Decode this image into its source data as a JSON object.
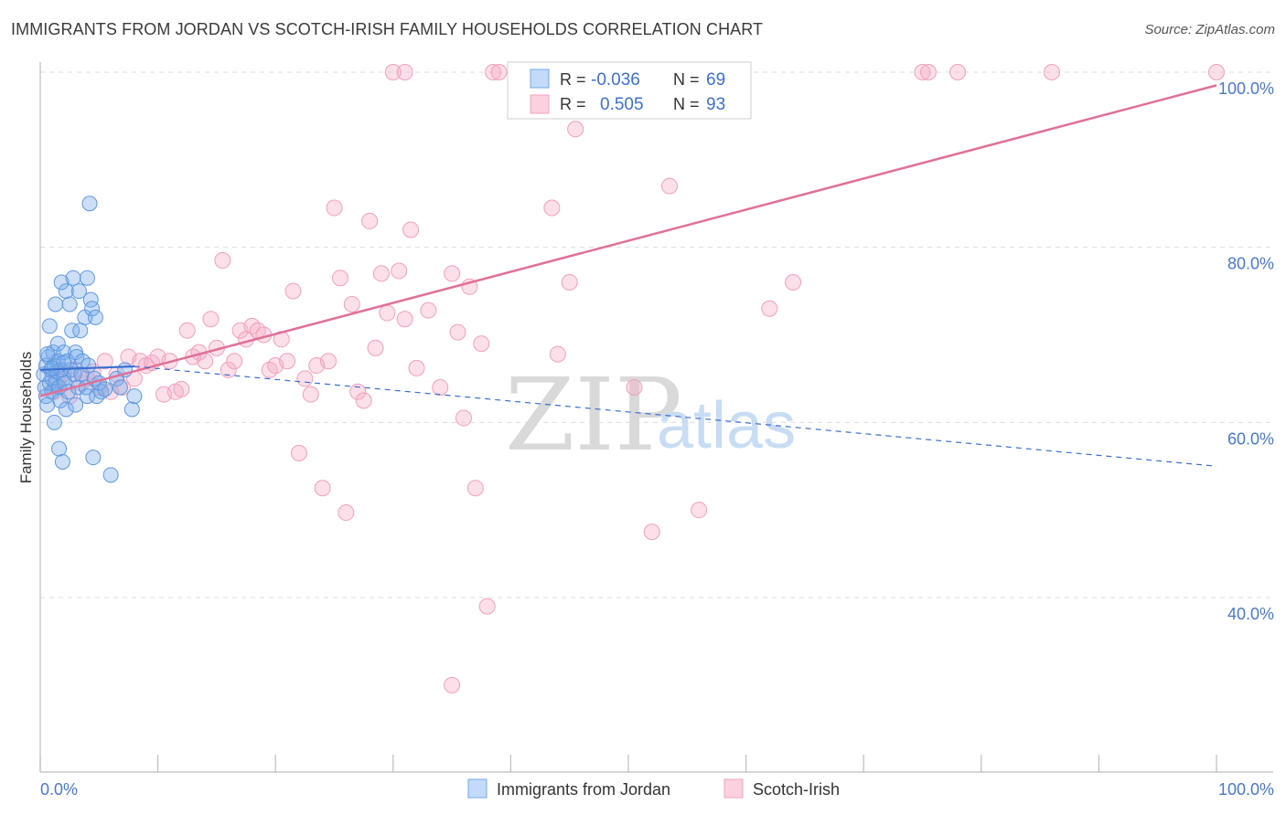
{
  "title": "IMMIGRANTS FROM JORDAN VS SCOTCH-IRISH FAMILY HOUSEHOLDS CORRELATION CHART",
  "source": "Source: ZipAtlas.com",
  "watermark": {
    "zip": "ZIP",
    "atlas": "atlas"
  },
  "colors": {
    "blue": "#6fa8e8",
    "pink": "#f1a2bf",
    "blue_line": "#3b6fcf",
    "pink_line": "#e07098",
    "grid": "#dddddd"
  },
  "legend_top": {
    "rows": [
      {
        "r_label": "R =",
        "r_value": "-0.036",
        "n_label": "N =",
        "n_value": "69"
      },
      {
        "r_label": "R =",
        "r_value": "0.505",
        "n_label": "N =",
        "n_value": "93"
      }
    ]
  },
  "legend_bottom": [
    "Immigrants from Jordan",
    "Scotch-Irish"
  ],
  "chart_data": {
    "type": "scatter",
    "title": "IMMIGRANTS FROM JORDAN VS SCOTCH-IRISH FAMILY HOUSEHOLDS CORRELATION CHART",
    "xlabel": "",
    "ylabel": "Family Households",
    "x_tick_labels": [
      "0.0%",
      "100.0%"
    ],
    "y_tick_labels": [
      "40.0%",
      "60.0%",
      "80.0%",
      "100.0%"
    ],
    "xlim": [
      0,
      100
    ],
    "ylim": [
      20,
      101
    ],
    "grid": true,
    "series": [
      {
        "name": "Immigrants from Jordan",
        "r": -0.036,
        "n": 69,
        "trend": {
          "x": [
            0,
            8,
            100
          ],
          "y": [
            66.0,
            66.4,
            55.0
          ]
        },
        "points": [
          [
            0.3,
            65.5
          ],
          [
            0.4,
            64.0
          ],
          [
            0.5,
            66.5
          ],
          [
            0.5,
            63.0
          ],
          [
            0.6,
            62.0
          ],
          [
            0.7,
            67.5
          ],
          [
            0.8,
            64.5
          ],
          [
            0.8,
            71.0
          ],
          [
            0.9,
            66.0
          ],
          [
            1.0,
            65.0
          ],
          [
            1.0,
            63.5
          ],
          [
            1.1,
            68.0
          ],
          [
            1.2,
            66.5
          ],
          [
            1.2,
            60.0
          ],
          [
            1.3,
            64.5
          ],
          [
            1.3,
            73.5
          ],
          [
            1.4,
            65.8
          ],
          [
            1.5,
            67.0
          ],
          [
            1.5,
            69.0
          ],
          [
            1.6,
            57.0
          ],
          [
            1.6,
            64.0
          ],
          [
            1.7,
            62.5
          ],
          [
            1.8,
            76.0
          ],
          [
            1.8,
            66.0
          ],
          [
            1.9,
            55.5
          ],
          [
            2.0,
            68.0
          ],
          [
            2.0,
            65.0
          ],
          [
            2.1,
            64.5
          ],
          [
            2.2,
            75.0
          ],
          [
            2.2,
            61.5
          ],
          [
            2.3,
            67.0
          ],
          [
            2.4,
            63.5
          ],
          [
            2.5,
            73.5
          ],
          [
            2.6,
            66.0
          ],
          [
            2.7,
            70.5
          ],
          [
            2.8,
            76.5
          ],
          [
            2.9,
            65.5
          ],
          [
            3.0,
            68.0
          ],
          [
            3.0,
            62.0
          ],
          [
            3.1,
            67.5
          ],
          [
            3.2,
            64.0
          ],
          [
            3.3,
            75.0
          ],
          [
            3.4,
            70.5
          ],
          [
            3.5,
            65.5
          ],
          [
            3.6,
            67.0
          ],
          [
            3.8,
            72.0
          ],
          [
            3.9,
            64.0
          ],
          [
            4.0,
            63.0
          ],
          [
            4.0,
            76.5
          ],
          [
            4.1,
            66.5
          ],
          [
            4.2,
            85.0
          ],
          [
            4.3,
            74.0
          ],
          [
            4.4,
            73.0
          ],
          [
            4.5,
            56.0
          ],
          [
            4.6,
            65.0
          ],
          [
            4.7,
            72.0
          ],
          [
            4.8,
            63.0
          ],
          [
            5.0,
            64.5
          ],
          [
            5.2,
            63.5
          ],
          [
            5.5,
            63.8
          ],
          [
            6.0,
            54.0
          ],
          [
            6.5,
            65.0
          ],
          [
            6.8,
            64.0
          ],
          [
            7.2,
            66.0
          ],
          [
            7.8,
            61.5
          ],
          [
            8.0,
            63.0
          ],
          [
            2.0,
            66.8
          ],
          [
            1.0,
            66.2
          ],
          [
            0.6,
            67.8
          ]
        ]
      },
      {
        "name": "Scotch-Irish",
        "r": 0.505,
        "n": 93,
        "trend": {
          "x": [
            0,
            100
          ],
          "y": [
            63.0,
            98.5
          ]
        },
        "points": [
          [
            1.2,
            63.5
          ],
          [
            1.5,
            64.8
          ],
          [
            2.0,
            65.5
          ],
          [
            2.5,
            63.0
          ],
          [
            3.0,
            66.0
          ],
          [
            3.5,
            64.5
          ],
          [
            4.0,
            65.0
          ],
          [
            4.5,
            65.8
          ],
          [
            5.0,
            64.0
          ],
          [
            5.5,
            67.0
          ],
          [
            6.0,
            63.5
          ],
          [
            6.5,
            65.5
          ],
          [
            7.0,
            64.0
          ],
          [
            7.5,
            67.5
          ],
          [
            8.0,
            65.0
          ],
          [
            8.5,
            67.0
          ],
          [
            9.0,
            66.5
          ],
          [
            9.5,
            66.8
          ],
          [
            10.0,
            67.5
          ],
          [
            10.5,
            63.2
          ],
          [
            11.0,
            67.0
          ],
          [
            11.5,
            63.5
          ],
          [
            12.0,
            63.8
          ],
          [
            12.5,
            70.5
          ],
          [
            13.0,
            67.5
          ],
          [
            13.5,
            68.0
          ],
          [
            14.0,
            67.0
          ],
          [
            14.5,
            71.8
          ],
          [
            15.0,
            68.5
          ],
          [
            15.5,
            78.5
          ],
          [
            16.0,
            66.0
          ],
          [
            16.5,
            67.0
          ],
          [
            17.0,
            70.5
          ],
          [
            17.5,
            69.5
          ],
          [
            18.0,
            71.0
          ],
          [
            18.5,
            70.5
          ],
          [
            19.0,
            70.0
          ],
          [
            19.5,
            66.0
          ],
          [
            20.0,
            66.5
          ],
          [
            20.5,
            69.5
          ],
          [
            21.0,
            67.0
          ],
          [
            21.5,
            75.0
          ],
          [
            22.0,
            56.5
          ],
          [
            22.5,
            65.0
          ],
          [
            23.0,
            63.2
          ],
          [
            23.5,
            66.5
          ],
          [
            24.0,
            52.5
          ],
          [
            24.5,
            67.0
          ],
          [
            25.0,
            84.5
          ],
          [
            25.5,
            76.5
          ],
          [
            26.0,
            49.7
          ],
          [
            26.5,
            73.5
          ],
          [
            27.0,
            63.5
          ],
          [
            27.5,
            62.5
          ],
          [
            28.0,
            83.0
          ],
          [
            28.5,
            68.5
          ],
          [
            29.0,
            77.0
          ],
          [
            29.5,
            72.5
          ],
          [
            30.0,
            100.0
          ],
          [
            30.5,
            77.3
          ],
          [
            31.0,
            71.8
          ],
          [
            31.5,
            82.0
          ],
          [
            32.0,
            66.2
          ],
          [
            31.0,
            100.0
          ],
          [
            33.0,
            72.8
          ],
          [
            34.0,
            64.0
          ],
          [
            35.0,
            77.0
          ],
          [
            35.5,
            70.3
          ],
          [
            36.0,
            60.5
          ],
          [
            36.5,
            75.5
          ],
          [
            37.0,
            52.5
          ],
          [
            37.5,
            69.0
          ],
          [
            38.0,
            39.0
          ],
          [
            38.5,
            100.0
          ],
          [
            39.0,
            100.0
          ],
          [
            35.0,
            30.0
          ],
          [
            43.5,
            84.5
          ],
          [
            44.0,
            67.8
          ],
          [
            45.0,
            76.0
          ],
          [
            45.5,
            93.5
          ],
          [
            47.5,
            100.0
          ],
          [
            50.5,
            64.0
          ],
          [
            52.0,
            47.5
          ],
          [
            53.5,
            87.0
          ],
          [
            54.5,
            100.0
          ],
          [
            56.0,
            50.0
          ],
          [
            62.0,
            73.0
          ],
          [
            64.0,
            76.0
          ],
          [
            75.0,
            100.0
          ],
          [
            75.5,
            100.0
          ],
          [
            78.0,
            100.0
          ],
          [
            86.0,
            100.0
          ],
          [
            100.0,
            100.0
          ]
        ]
      }
    ]
  }
}
